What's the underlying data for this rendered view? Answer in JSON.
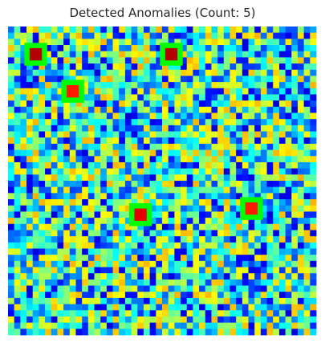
{
  "chart_data": {
    "type": "heatmap",
    "title": "Detected Anomalies (Count: 5)",
    "colormap": "jet",
    "grid": false,
    "axes_visible": false,
    "value_range": [
      0,
      1
    ],
    "grid_size": [
      50,
      50
    ],
    "random_seed": 7,
    "anomaly_marker_color": "#00ff00",
    "anomalies": [
      {
        "row": 4,
        "col": 4,
        "value": 0.95
      },
      {
        "row": 4,
        "col": 26,
        "value": 0.95
      },
      {
        "row": 10,
        "col": 10,
        "value": 0.85
      },
      {
        "row": 30,
        "col": 21,
        "value": 0.9
      },
      {
        "row": 29,
        "col": 39,
        "value": 0.85
      }
    ]
  }
}
